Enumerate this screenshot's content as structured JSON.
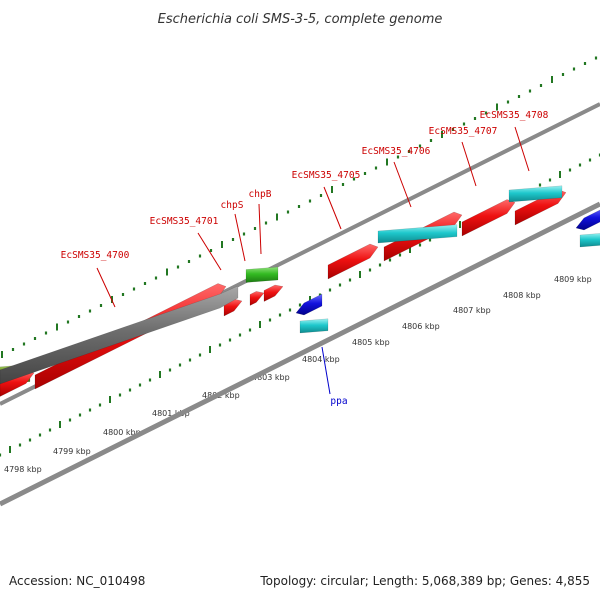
{
  "title": "Escherichia coli SMS-3-5, complete genome",
  "footer": {
    "accession": "Accession: NC_010498",
    "topology": "Topology: circular; Length: 5,068,389 bp; Genes: 4,855"
  },
  "colors": {
    "red": "#ee1111",
    "gray": "#6e6e6e",
    "green": "#33bb22",
    "olive": "#6a9a22",
    "cyan": "#1ec8cc",
    "blue": "#1111dd",
    "tick": "#227722",
    "label_red": "#cc0000",
    "label_blue": "#0000cc",
    "backbone": "#8a8a8a"
  },
  "chart_data": {
    "type": "genome-map",
    "units": "kbp",
    "scale": {
      "inner_ticks": [
        "4798 kbp",
        "4799 kbp",
        "4800 kbp",
        "4801 kbp",
        "4802 kbp",
        "4803 kbp",
        "4804 kbp",
        "4805 kbp",
        "4806 kbp",
        "4807 kbp",
        "4808 kbp",
        "4809 kbp"
      ]
    },
    "labels": [
      {
        "text": "EcSMS35_4700",
        "color": "red"
      },
      {
        "text": "EcSMS35_4701",
        "color": "red"
      },
      {
        "text": "chpS",
        "color": "red"
      },
      {
        "text": "chpB",
        "color": "red"
      },
      {
        "text": "EcSMS35_4705",
        "color": "red"
      },
      {
        "text": "EcSMS35_4706",
        "color": "red"
      },
      {
        "text": "EcSMS35_4707",
        "color": "red"
      },
      {
        "text": "EcSMS35_4708",
        "color": "red"
      },
      {
        "text": "ppa",
        "color": "blue"
      }
    ]
  }
}
